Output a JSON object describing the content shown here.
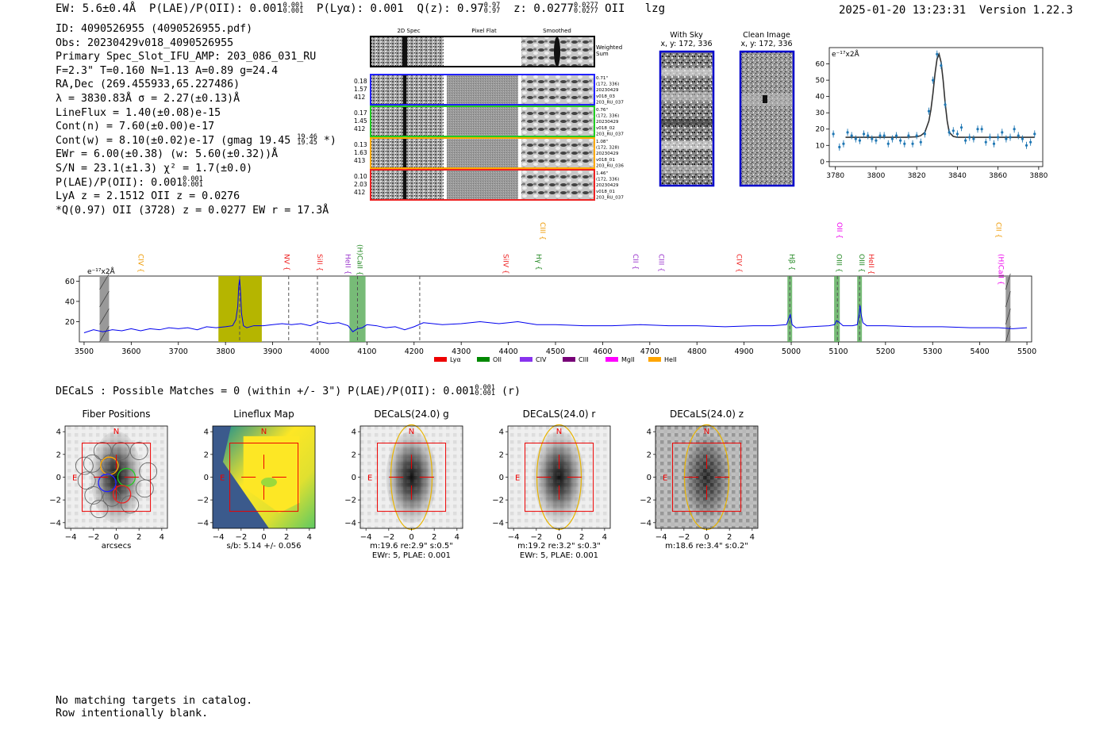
{
  "header": {
    "ew": "EW: 5.6±0.4Å",
    "plae": "P(LAE)/P(OII): 0.001",
    "plae_sup": "0.001",
    "plae_sub": "0.001",
    "plya": "P(Lyα): 0.001",
    "q": "Q(z): 0.97",
    "q_sup": "0.97",
    "q_sub": "0.97",
    "z": "z: 0.0277",
    "z_sup": "0.0277",
    "z_sub": "0.0277",
    "line": "OII",
    "tag": "lzg",
    "timestamp": "2025-01-20 13:23:31",
    "version": "Version 1.22.3"
  },
  "info": {
    "id": "ID: 4090526955 (4090526955.pdf)",
    "obs": "Obs: 20230429v018_4090526955",
    "primary": "Primary Spec_Slot_IFU_AMP: 203_086_031_RU",
    "fit": "F=2.3\"  T=0.160  N=1.13  A=0.89  g=24.4",
    "radec": "RA,Dec (269.455933,65.227486)",
    "lambda": "λ = 3830.83Å  σ = 2.27(±0.13)Å",
    "lineflux": "LineFlux = 1.40(±0.08)e-15",
    "contn": "Cont(n) = 7.60(±0.00)e-17",
    "contw": "Cont(w) = 8.10(±0.02)e-17 (gmag 19.45",
    "gmag_sup": "19.46",
    "gmag_sub": "19.45",
    "contw_end": " *)",
    "ewr": "EWr = 6.00(±0.38) (w: 5.60(±0.32))Å",
    "sn": "S/N = 23.1(±1.3)  χ² = 1.7(±0.0)",
    "plae": "P(LAE)/P(OII): 0.001",
    "plae_sup": "0.001",
    "plae_sub": "0.001",
    "lya": "LyA z = 2.1512  OII z = 0.0276",
    "q": "*Q(0.97) OII (3728) z = 0.0277  EW r = 17.3Å"
  },
  "cutouts": {
    "col_labels": [
      "2D Spec",
      "Pixel Flat",
      "Smoothed"
    ],
    "weighted_label": [
      "Weighted",
      "Sum"
    ],
    "rows": [
      {
        "left": [
          "0.18",
          "1.57",
          "412"
        ],
        "right": [
          "0.71\"",
          "(172, 336)",
          "20230429",
          "v018_03",
          "203_RU_037"
        ],
        "color": "#2222ff"
      },
      {
        "left": [
          "0.17",
          "1.45",
          "412"
        ],
        "right": [
          "0.76\"",
          "(172, 336)",
          "20230429",
          "v018_02",
          "203_RU_037"
        ],
        "color": "#22cc22"
      },
      {
        "left": [
          "0.13",
          "1.63",
          "413"
        ],
        "right": [
          "1.08\"",
          "(172, 328)",
          "20230429",
          "v018_01",
          "203_RU_036"
        ],
        "color": "#ffaa00"
      },
      {
        "left": [
          "0.10",
          "2.03",
          "412"
        ],
        "right": [
          "1.46\"",
          "(172, 336)",
          "20230429",
          "v018_01",
          "203_RU_037"
        ],
        "color": "#ee2222"
      }
    ]
  },
  "sky_panels": [
    {
      "title": "With Sky",
      "subtitle": "x, y: 172, 336"
    },
    {
      "title": "Clean Image",
      "subtitle": "x, y: 172, 336"
    }
  ],
  "chart_data": [
    {
      "type": "scatter",
      "name": "zoom-fit",
      "title": "",
      "unit_label": "e⁻¹⁷x2Å",
      "xlabel": "",
      "ylabel": "",
      "xlim": [
        3777,
        3882
      ],
      "ylim": [
        -3,
        70
      ],
      "xticks": [
        3780,
        3800,
        3820,
        3840,
        3860,
        3880
      ],
      "yticks": [
        0,
        10,
        20,
        30,
        40,
        50,
        60
      ],
      "points": {
        "x": [
          3779,
          3782,
          3784,
          3786,
          3788,
          3790,
          3792,
          3794,
          3796,
          3798,
          3800,
          3802,
          3804,
          3806,
          3808,
          3810,
          3812,
          3814,
          3816,
          3818,
          3820,
          3822,
          3824,
          3826,
          3828,
          3830,
          3832,
          3834,
          3836,
          3838,
          3840,
          3842,
          3844,
          3846,
          3848,
          3850,
          3852,
          3854,
          3856,
          3858,
          3860,
          3862,
          3864,
          3866,
          3868,
          3870,
          3872,
          3874,
          3876,
          3878
        ],
        "y": [
          17,
          9,
          11,
          18,
          16,
          14,
          13,
          17,
          16,
          14,
          13,
          16,
          16,
          11,
          14,
          16,
          13,
          11,
          16,
          11,
          16,
          12,
          17,
          31,
          50,
          66,
          59,
          35,
          18,
          19,
          17,
          21,
          13,
          15,
          14,
          20,
          20,
          12,
          15,
          11,
          15,
          18,
          14,
          15,
          20,
          16,
          14,
          10,
          12,
          17
        ]
      },
      "fit_line": {
        "x": [
          3785,
          3800,
          3815,
          3820,
          3822,
          3824,
          3826,
          3827,
          3828,
          3829,
          3830,
          3831,
          3832,
          3833,
          3834,
          3835,
          3836,
          3838,
          3840,
          3845,
          3878
        ],
        "y": [
          15,
          15,
          15,
          15.3,
          16,
          18,
          25,
          32,
          42,
          54,
          63,
          66,
          61,
          50,
          36,
          25,
          18,
          15.5,
          15,
          15,
          15
        ]
      },
      "zero_line": 0
    },
    {
      "type": "line",
      "name": "full-spectrum",
      "unit_label": "e⁻¹⁷x2Å",
      "xlim": [
        3490,
        5510
      ],
      "ylim": [
        0,
        65
      ],
      "xticks": [
        3500,
        3600,
        3700,
        3800,
        3900,
        4000,
        4100,
        4200,
        4300,
        4400,
        4500,
        4600,
        4700,
        4800,
        4900,
        5000,
        5100,
        5200,
        5300,
        5400,
        5500
      ],
      "yticks": [
        20,
        40,
        60
      ],
      "series": [
        {
          "name": "spectrum",
          "color": "#0000ee",
          "x": [
            3500,
            3520,
            3540,
            3560,
            3580,
            3600,
            3620,
            3640,
            3660,
            3680,
            3700,
            3720,
            3740,
            3760,
            3780,
            3800,
            3815,
            3822,
            3826,
            3828,
            3830,
            3832,
            3834,
            3838,
            3845,
            3860,
            3880,
            3900,
            3920,
            3940,
            3960,
            3980,
            4000,
            4020,
            4040,
            4060,
            4070,
            4080,
            4090,
            4100,
            4120,
            4140,
            4160,
            4180,
            4200,
            4220,
            4260,
            4300,
            4340,
            4380,
            4420,
            4460,
            4500,
            4560,
            4620,
            4680,
            4740,
            4800,
            4860,
            4920,
            4960,
            4990,
            4998,
            5002,
            5010,
            5040,
            5080,
            5092,
            5096,
            5100,
            5110,
            5130,
            5140,
            5144,
            5146,
            5148,
            5152,
            5160,
            5200,
            5260,
            5320,
            5380,
            5440,
            5470,
            5500
          ],
          "y": [
            9,
            12,
            10,
            12,
            11,
            13,
            11,
            13,
            12,
            14,
            13,
            14,
            12,
            15,
            14,
            15,
            16,
            22,
            35,
            55,
            62,
            48,
            28,
            16,
            14,
            16,
            16,
            17,
            18,
            17,
            18,
            16,
            20,
            18,
            19,
            16,
            10,
            13,
            14,
            17,
            16,
            14,
            15,
            12,
            15,
            19,
            17,
            18,
            20,
            18,
            20,
            17,
            17,
            16,
            16,
            17,
            16,
            16,
            15,
            16,
            16,
            17,
            27,
            17,
            14,
            15,
            16,
            17,
            21,
            20,
            16,
            16,
            17,
            27,
            36,
            28,
            19,
            16,
            16,
            15,
            15,
            14,
            14,
            13,
            14
          ]
        }
      ],
      "line_labels": [
        {
          "text": "CIV",
          "wl": 3615,
          "color": "#ee9900",
          "tier": 1
        },
        {
          "text": "NV",
          "wl": 3925,
          "color": "#ee2222",
          "tier": 1
        },
        {
          "text": "SiII",
          "wl": 3995,
          "color": "#ee2222",
          "tier": 1
        },
        {
          "text": "HeII",
          "wl": 4055,
          "color": "#9933cc",
          "tier": 1
        },
        {
          "text": "(H)CaII",
          "wl": 4080,
          "color": "#228822",
          "tier": 0
        },
        {
          "text": "SiIV",
          "wl": 4390,
          "color": "#ee2222",
          "tier": 1
        },
        {
          "text": "Hγ",
          "wl": 4460,
          "color": "#228822",
          "tier": 1
        },
        {
          "text": "CIII",
          "wl": 4468,
          "color": "#ee9900",
          "tier": 2
        },
        {
          "text": "CII",
          "wl": 4665,
          "color": "#9933cc",
          "tier": 1
        },
        {
          "text": "CIII",
          "wl": 4720,
          "color": "#9933cc",
          "tier": 1
        },
        {
          "text": "CIV",
          "wl": 4885,
          "color": "#ee2222",
          "tier": 1
        },
        {
          "text": "Hβ",
          "wl": 4997,
          "color": "#228822",
          "tier": 1
        },
        {
          "text": "OII",
          "wl": 5098,
          "color": "#ee00ee",
          "tier": 2
        },
        {
          "text": "OIII",
          "wl": 5097,
          "color": "#228822",
          "tier": 1
        },
        {
          "text": "OIII",
          "wl": 5145,
          "color": "#228822",
          "tier": 1
        },
        {
          "text": "HeII",
          "wl": 5165,
          "color": "#ee2222",
          "tier": 1
        },
        {
          "text": "CII",
          "wl": 5435,
          "color": "#ee9900",
          "tier": 2
        },
        {
          "text": "(H)CaII",
          "wl": 5440,
          "color": "#ee00ee",
          "tier": 1
        }
      ],
      "legend": [
        {
          "label": "Lyα",
          "color": "#ee0000"
        },
        {
          "label": "OII",
          "color": "#008800"
        },
        {
          "label": "CIV",
          "color": "#8833ee"
        },
        {
          "label": "CIII",
          "color": "#770077"
        },
        {
          "label": "MgII",
          "color": "#ff00ff"
        },
        {
          "label": "HeII",
          "color": "#ffa500"
        }
      ]
    }
  ],
  "decals": {
    "line": "DECaLS : Possible Matches = 0 (within +/- 3\")  P(LAE)/P(OII): 0.001",
    "sup": "0.001",
    "sub": "0.001",
    "band": "(r)"
  },
  "thumbnails": {
    "xticks": [
      "−4",
      "−2",
      "0",
      "2",
      "4"
    ],
    "yticks": [
      "4",
      "2",
      "0",
      "−2",
      "−4"
    ],
    "compass_n": "N",
    "compass_e": "E",
    "panels": [
      {
        "title": "Fiber Positions",
        "caption1": "arcsecs",
        "caption2": ""
      },
      {
        "title": "Lineflux Map",
        "caption1": "s/b: 5.14 +/- 0.056",
        "caption2": ""
      },
      {
        "title": "DECaLS(24.0) g",
        "caption1": "m:19.6  re:2.9\"  s:0.5\"",
        "caption2": "EWr: 5, PLAE: 0.001"
      },
      {
        "title": "DECaLS(24.0) r",
        "caption1": "m:19.2  re:3.2\"  s:0.3\"",
        "caption2": "EWr: 5, PLAE: 0.001"
      },
      {
        "title": "DECaLS(24.0) z",
        "caption1": "m:18.6  re:3.4\"  s:0.2\"",
        "caption2": ""
      }
    ]
  },
  "footer": {
    "line1": "No matching targets in catalog.",
    "line2": "Row intentionally blank."
  }
}
